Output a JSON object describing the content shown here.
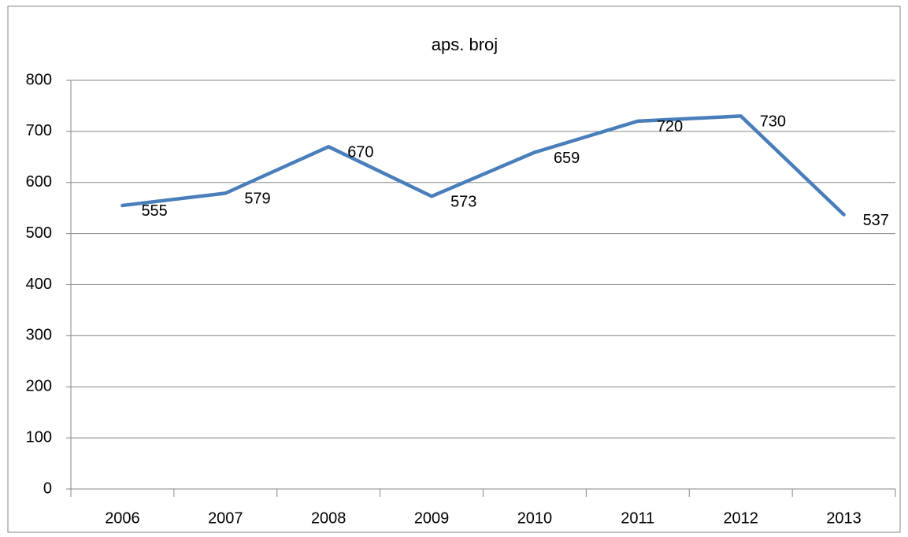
{
  "chart_data": {
    "type": "line",
    "title": "aps. broj",
    "categories": [
      "2006",
      "2007",
      "2008",
      "2009",
      "2010",
      "2011",
      "2012",
      "2013"
    ],
    "series": [
      {
        "name": "aps. broj",
        "color": "#4a7ebb",
        "values": [
          555,
          579,
          670,
          573,
          659,
          720,
          730,
          537
        ]
      }
    ],
    "ylim": [
      0,
      800
    ],
    "yticks": [
      0,
      100,
      200,
      300,
      400,
      500,
      600,
      700,
      800
    ],
    "grid": true
  }
}
